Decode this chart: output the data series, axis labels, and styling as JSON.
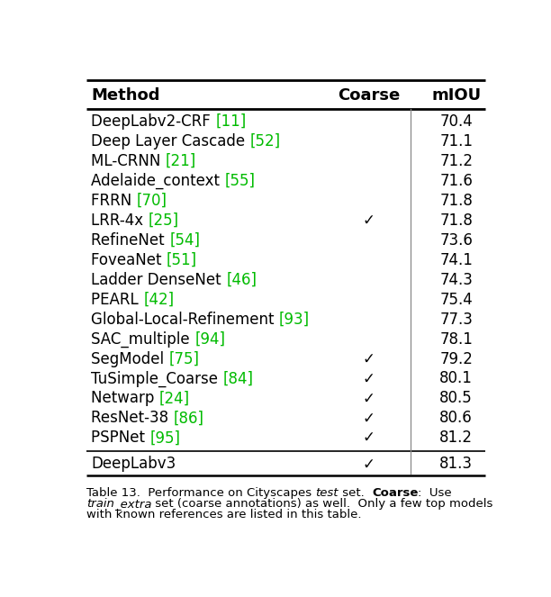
{
  "col_headers": [
    "Method",
    "Coarse",
    "mIOU"
  ],
  "rows": [
    {
      "method": "DeepLabv2-CRF",
      "ref": "11",
      "coarse": false,
      "miou": "70.4"
    },
    {
      "method": "Deep Layer Cascade",
      "ref": "52",
      "coarse": false,
      "miou": "71.1"
    },
    {
      "method": "ML-CRNN",
      "ref": "21",
      "coarse": false,
      "miou": "71.2"
    },
    {
      "method": "Adelaide_context",
      "ref": "55",
      "coarse": false,
      "miou": "71.6"
    },
    {
      "method": "FRRN",
      "ref": "70",
      "coarse": false,
      "miou": "71.8"
    },
    {
      "method": "LRR-4x",
      "ref": "25",
      "coarse": true,
      "miou": "71.8"
    },
    {
      "method": "RefineNet",
      "ref": "54",
      "coarse": false,
      "miou": "73.6"
    },
    {
      "method": "FoveaNet",
      "ref": "51",
      "coarse": false,
      "miou": "74.1"
    },
    {
      "method": "Ladder DenseNet",
      "ref": "46",
      "coarse": false,
      "miou": "74.3"
    },
    {
      "method": "PEARL",
      "ref": "42",
      "coarse": false,
      "miou": "75.4"
    },
    {
      "method": "Global-Local-Refinement",
      "ref": "93",
      "coarse": false,
      "miou": "77.3"
    },
    {
      "method": "SAC_multiple",
      "ref": "94",
      "coarse": false,
      "miou": "78.1"
    },
    {
      "method": "SegModel",
      "ref": "75",
      "coarse": true,
      "miou": "79.2"
    },
    {
      "method": "TuSimple_Coarse",
      "ref": "84",
      "coarse": true,
      "miou": "80.1"
    },
    {
      "method": "Netwarp",
      "ref": "24",
      "coarse": true,
      "miou": "80.5"
    },
    {
      "method": "ResNet-38",
      "ref": "86",
      "coarse": true,
      "miou": "80.6"
    },
    {
      "method": "PSPNet",
      "ref": "95",
      "coarse": true,
      "miou": "81.2"
    }
  ],
  "highlight_row": {
    "method": "DeepLabv3",
    "ref": "",
    "coarse": true,
    "miou": "81.3"
  },
  "ref_color": "#00bb00",
  "header_color": "#000000",
  "bg_color": "#ffffff",
  "fontsize": 12,
  "header_fontsize": 13,
  "caption_fontsize": 9.5
}
